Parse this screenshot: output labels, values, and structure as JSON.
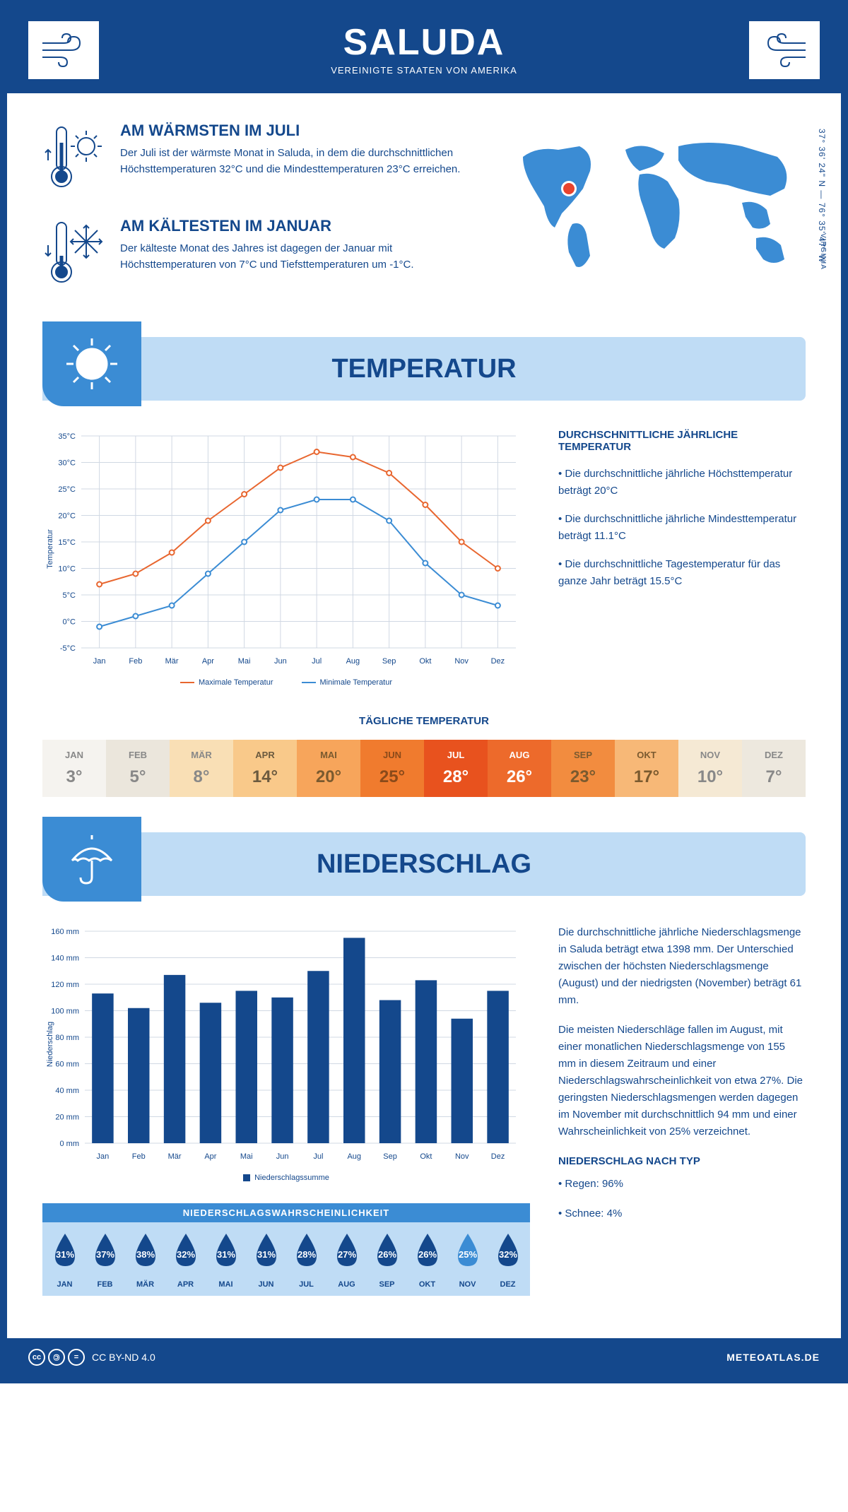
{
  "header": {
    "title": "SALUDA",
    "subtitle": "VEREINIGTE STAATEN VON AMERIKA"
  },
  "colors": {
    "brand_dark": "#14488c",
    "brand_mid": "#3b8cd4",
    "brand_light": "#bfdcf5",
    "max_line": "#e8662f",
    "min_line": "#3b8cd4",
    "grid": "#d0d8e3"
  },
  "coords": "37° 36' 24\" N — 76° 35' 47\" W",
  "region": "VIRGINIA",
  "warmest": {
    "title": "AM WÄRMSTEN IM JULI",
    "text": "Der Juli ist der wärmste Monat in Saluda, in dem die durchschnittlichen Höchsttemperaturen 32°C und die Mindesttemperaturen 23°C erreichen."
  },
  "coldest": {
    "title": "AM KÄLTESTEN IM JANUAR",
    "text": "Der kälteste Monat des Jahres ist dagegen der Januar mit Höchsttemperaturen von 7°C und Tiefsttemperaturen um -1°C."
  },
  "sections": {
    "temp": "TEMPERATUR",
    "precip": "NIEDERSCHLAG"
  },
  "months": [
    "Jan",
    "Feb",
    "Mär",
    "Apr",
    "Mai",
    "Jun",
    "Jul",
    "Aug",
    "Sep",
    "Okt",
    "Nov",
    "Dez"
  ],
  "months_upper": [
    "JAN",
    "FEB",
    "MÄR",
    "APR",
    "MAI",
    "JUN",
    "JUL",
    "AUG",
    "SEP",
    "OKT",
    "NOV",
    "DEZ"
  ],
  "temp_chart": {
    "ylabel": "Temperatur",
    "ymin": -5,
    "ymax": 35,
    "ystep": 5,
    "max_series": [
      7,
      9,
      13,
      19,
      24,
      29,
      32,
      31,
      28,
      22,
      15,
      10
    ],
    "min_series": [
      -1,
      1,
      3,
      9,
      15,
      21,
      23,
      23,
      19,
      11,
      5,
      3
    ],
    "legend_max": "Maximale Temperatur",
    "legend_min": "Minimale Temperatur"
  },
  "temp_facts": {
    "title": "DURCHSCHNITTLICHE JÄHRLICHE TEMPERATUR",
    "b1": "• Die durchschnittliche jährliche Höchsttemperatur beträgt 20°C",
    "b2": "• Die durchschnittliche jährliche Mindesttemperatur beträgt 11.1°C",
    "b3": "• Die durchschnittliche Tagestemperatur für das ganze Jahr beträgt 15.5°C"
  },
  "daily_title": "TÄGLICHE TEMPERATUR",
  "daily_temps": [
    {
      "v": "3°",
      "bg": "#f5f3ef",
      "fg": "#888"
    },
    {
      "v": "5°",
      "bg": "#ebe6dc",
      "fg": "#888"
    },
    {
      "v": "8°",
      "bg": "#f9dfb5",
      "fg": "#888"
    },
    {
      "v": "14°",
      "bg": "#f9c98a",
      "fg": "#6b5a3f"
    },
    {
      "v": "20°",
      "bg": "#f7a55b",
      "fg": "#7a5a2f"
    },
    {
      "v": "25°",
      "bg": "#f07b2e",
      "fg": "#8a4a1a"
    },
    {
      "v": "28°",
      "bg": "#e8521e",
      "fg": "#fff"
    },
    {
      "v": "26°",
      "bg": "#ed6a2b",
      "fg": "#fff"
    },
    {
      "v": "23°",
      "bg": "#f28c3f",
      "fg": "#7a5a2f"
    },
    {
      "v": "17°",
      "bg": "#f7b877",
      "fg": "#7a5a2f"
    },
    {
      "v": "10°",
      "bg": "#f5e9d4",
      "fg": "#888"
    },
    {
      "v": "7°",
      "bg": "#ede8de",
      "fg": "#888"
    }
  ],
  "precip_chart": {
    "ylabel": "Niederschlag",
    "ymin": 0,
    "ymax": 160,
    "ystep": 20,
    "values": [
      113,
      102,
      127,
      106,
      115,
      110,
      130,
      155,
      108,
      123,
      94,
      115
    ],
    "legend": "Niederschlagssumme",
    "bar_color": "#14488c"
  },
  "precip_text": {
    "p1": "Die durchschnittliche jährliche Niederschlagsmenge in Saluda beträgt etwa 1398 mm. Der Unterschied zwischen der höchsten Niederschlagsmenge (August) und der niedrigsten (November) beträgt 61 mm.",
    "p2": "Die meisten Niederschläge fallen im August, mit einer monatlichen Niederschlagsmenge von 155 mm in diesem Zeitraum und einer Niederschlagswahrscheinlichkeit von etwa 27%. Die geringsten Niederschlagsmengen werden dagegen im November mit durchschnittlich 94 mm und einer Wahrscheinlichkeit von 25% verzeichnet.",
    "type_title": "NIEDERSCHLAG NACH TYP",
    "type1": "• Regen: 96%",
    "type2": "• Schnee: 4%"
  },
  "prob_title": "NIEDERSCHLAGSWAHRSCHEINLICHKEIT",
  "prob": [
    {
      "v": "31%",
      "c": "#14488c"
    },
    {
      "v": "37%",
      "c": "#14488c"
    },
    {
      "v": "38%",
      "c": "#14488c"
    },
    {
      "v": "32%",
      "c": "#14488c"
    },
    {
      "v": "31%",
      "c": "#14488c"
    },
    {
      "v": "31%",
      "c": "#14488c"
    },
    {
      "v": "28%",
      "c": "#14488c"
    },
    {
      "v": "27%",
      "c": "#14488c"
    },
    {
      "v": "26%",
      "c": "#14488c"
    },
    {
      "v": "26%",
      "c": "#14488c"
    },
    {
      "v": "25%",
      "c": "#3b8cd4"
    },
    {
      "v": "32%",
      "c": "#14488c"
    }
  ],
  "footer": {
    "license": "CC BY-ND 4.0",
    "site": "METEOATLAS.DE"
  }
}
